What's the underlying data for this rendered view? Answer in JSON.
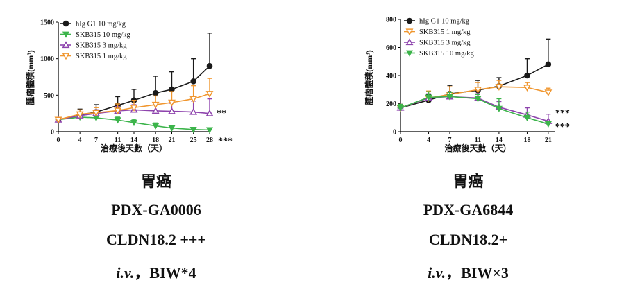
{
  "chart_data": [
    {
      "type": "line",
      "ylabel": "腫瘤體積(mm³)",
      "xlabel": "治療後天數（天）",
      "x": [
        0,
        4,
        7,
        11,
        14,
        18,
        21,
        25,
        28
      ],
      "xticks": [
        0,
        4,
        7,
        11,
        14,
        18,
        21,
        25,
        28
      ],
      "ylim": [
        0,
        1500
      ],
      "yticks": [
        0,
        500,
        1000,
        1500
      ],
      "legend_position": "top-left",
      "series": [
        {
          "name": "hIg G1 10 mg/kg",
          "color": "#1a1a1a",
          "marker": "circle",
          "values": [
            165,
            230,
            270,
            360,
            430,
            530,
            580,
            690,
            900
          ],
          "errors": [
            20,
            80,
            100,
            120,
            150,
            230,
            240,
            310,
            450
          ]
        },
        {
          "name": "SKB315 10 mg/kg",
          "color": "#3cb44b",
          "marker": "triangle-down",
          "values": [
            165,
            200,
            190,
            160,
            125,
            80,
            50,
            30,
            25
          ],
          "errors": [
            20,
            30,
            30,
            40,
            45,
            40,
            25,
            15,
            10
          ]
        },
        {
          "name": "SKB315 3 mg/kg",
          "color": "#8e44ad",
          "marker": "triangle-up-open",
          "values": [
            165,
            220,
            250,
            285,
            300,
            285,
            280,
            270,
            250
          ],
          "errors": [
            20,
            40,
            50,
            60,
            70,
            100,
            110,
            150,
            200
          ]
        },
        {
          "name": "SKB315 1 mg/kg",
          "color": "#f0962e",
          "marker": "triangle-down-open",
          "values": [
            165,
            240,
            260,
            290,
            330,
            370,
            400,
            450,
            520
          ],
          "errors": [
            20,
            60,
            70,
            90,
            100,
            120,
            150,
            180,
            210
          ]
        }
      ],
      "annotations": [
        {
          "text": "**",
          "series": "SKB315 3 mg/kg"
        },
        {
          "text": "***",
          "series": "SKB315 10 mg/kg"
        }
      ]
    },
    {
      "type": "line",
      "ylabel": "腫瘤體積(mm³)",
      "xlabel": "治療後天數（天）",
      "x": [
        0,
        4,
        7,
        11,
        14,
        18,
        21
      ],
      "xticks": [
        0,
        4,
        7,
        11,
        14,
        18,
        21
      ],
      "ylim": [
        0,
        800
      ],
      "yticks": [
        0,
        200,
        400,
        600,
        800
      ],
      "legend_position": "top-left",
      "series": [
        {
          "name": "hIg G1 10 mg/kg",
          "color": "#1a1a1a",
          "marker": "circle",
          "values": [
            170,
            225,
            270,
            295,
            325,
            400,
            480
          ],
          "errors": [
            25,
            40,
            60,
            70,
            60,
            120,
            180
          ]
        },
        {
          "name": "SKB315 1 mg/kg",
          "color": "#f0962e",
          "marker": "triangle-down-open",
          "values": [
            170,
            240,
            265,
            300,
            320,
            315,
            280
          ],
          "errors": [
            25,
            50,
            55,
            50,
            45,
            35,
            30
          ]
        },
        {
          "name": "SKB315 3 mg/kg",
          "color": "#8e44ad",
          "marker": "triangle-up-open",
          "values": [
            170,
            240,
            250,
            240,
            175,
            120,
            75
          ],
          "errors": [
            25,
            30,
            30,
            30,
            40,
            50,
            50
          ]
        },
        {
          "name": "SKB315 10 mg/kg",
          "color": "#3cb44b",
          "marker": "triangle-down",
          "values": [
            170,
            245,
            250,
            235,
            165,
            100,
            55
          ],
          "errors": [
            25,
            40,
            30,
            30,
            70,
            40,
            20
          ]
        }
      ],
      "annotations": [
        {
          "text": "***",
          "series": "SKB315 3 mg/kg"
        },
        {
          "text": "***",
          "series": "SKB315 10 mg/kg"
        }
      ]
    }
  ],
  "captions": [
    {
      "cancer": "胃癌",
      "model": "PDX-GA0006",
      "marker": "CLDN18.2 +++",
      "route": "i.v.",
      "schedule": "，BIW*4"
    },
    {
      "cancer": "胃癌",
      "model": "PDX-GA6844",
      "marker": "CLDN18.2+",
      "route": "i.v.",
      "schedule": "，BIW×3"
    }
  ]
}
